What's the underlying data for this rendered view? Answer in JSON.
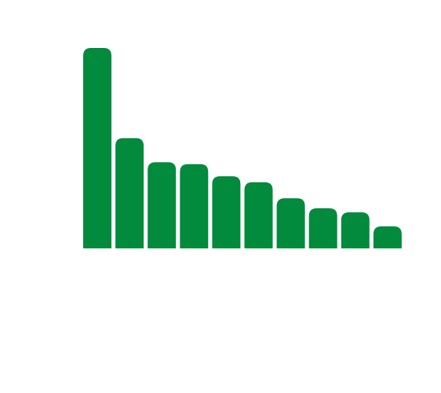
{
  "chart_data": {
    "type": "bar",
    "categories": [
      "",
      "",
      "",
      "",
      "",
      "",
      "",
      "",
      "",
      ""
    ],
    "values": [
      100,
      55,
      43,
      42,
      36,
      33,
      25,
      20,
      18,
      11
    ],
    "ylim": [
      0,
      100
    ],
    "title": "",
    "xlabel": "",
    "ylabel": "",
    "grid": false,
    "legend": "none",
    "bar_color": "#028A3D",
    "bar_corners": "rounded-top"
  }
}
